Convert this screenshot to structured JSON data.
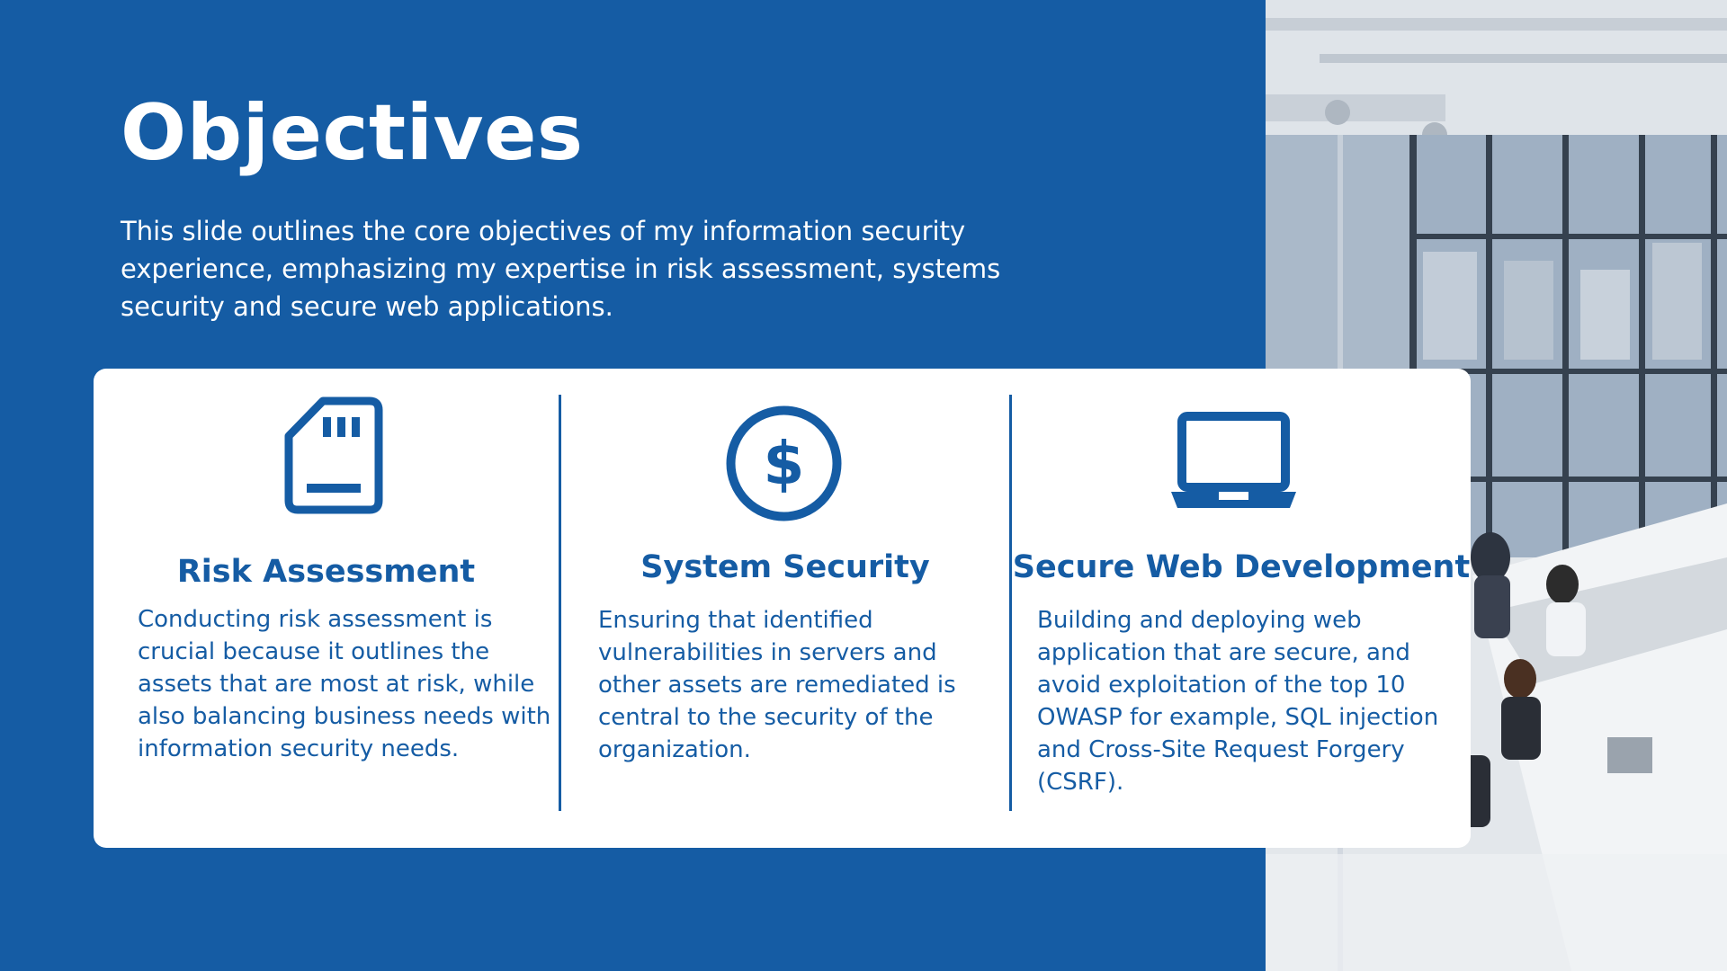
{
  "slide": {
    "title": "Objectives",
    "subtitle": "This slide outlines the core objectives  of my information security experience, emphasizing my expertise in risk assessment, systems security and secure web applications."
  },
  "objectives": [
    {
      "icon": "sd-card-icon",
      "title": "Risk Assessment",
      "body": "Conducting risk assessment is crucial because it outlines the assets that are most at risk, while also balancing business needs with information security needs."
    },
    {
      "icon": "dollar-circle-icon",
      "title": "System Security",
      "body": "Ensuring that identified vulnerabilities in servers and other assets are remediated is central to the security of the organization."
    },
    {
      "icon": "laptop-icon",
      "title": "Secure Web Development",
      "body": "Building  and deploying web application that are secure, and avoid exploitation of the top 10 OWASP for example, SQL injection and Cross-Site Request Forgery (CSRF)."
    }
  ],
  "colors": {
    "background": "#155ca4",
    "card": "#ffffff",
    "accent": "#155ca4",
    "title_text": "#ffffff"
  }
}
